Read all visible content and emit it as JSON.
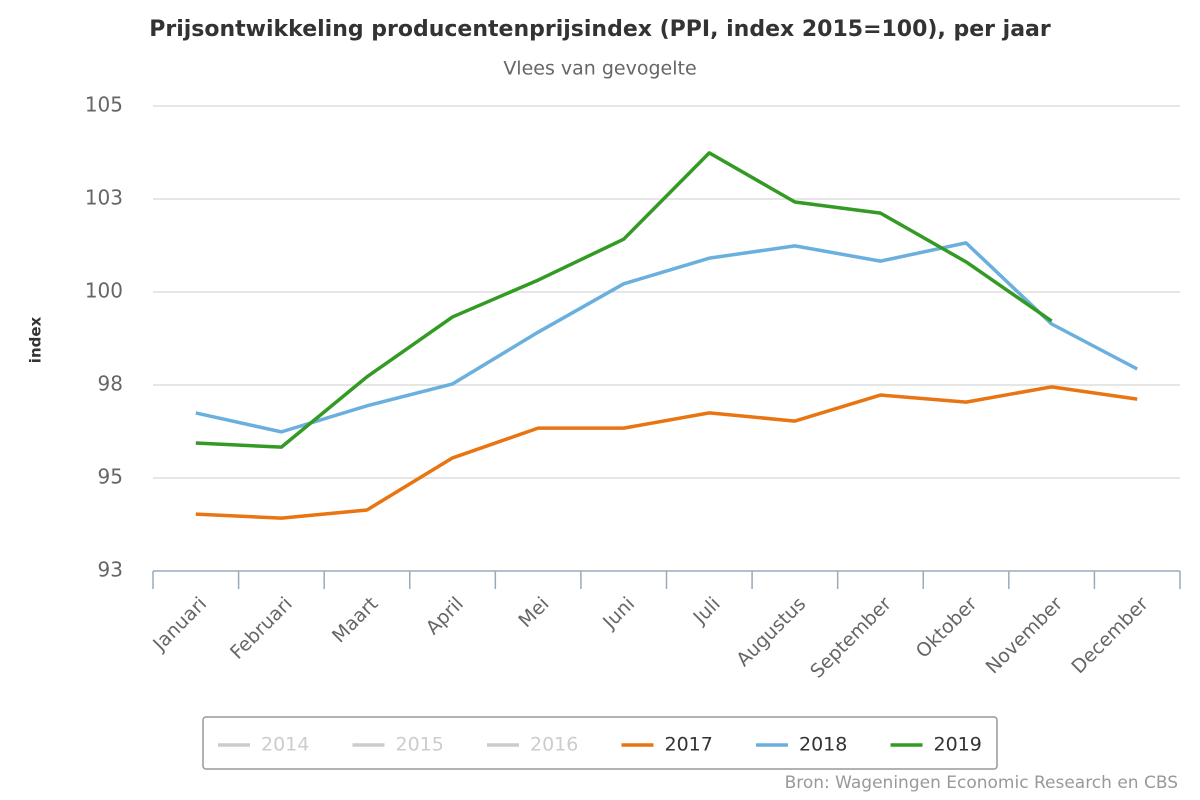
{
  "chart_data": {
    "type": "line",
    "title": "Prijsontwikkeling producentenprijsindex (PPI, index 2015=100), per jaar",
    "subtitle": "Vlees van gevogelte",
    "y_label": "index",
    "source": "Bron: Wageningen Economic Research en CBS",
    "categories": [
      "Januari",
      "Februari",
      "Maart",
      "April",
      "Mei",
      "Juni",
      "Juli",
      "Augustus",
      "September",
      "Oktober",
      "November",
      "December"
    ],
    "series": [
      {
        "name": "2014",
        "color": "#cccccc",
        "hidden": true,
        "values": [
          null,
          null,
          null,
          null,
          null,
          null,
          null,
          null,
          null,
          null,
          null,
          null
        ]
      },
      {
        "name": "2015",
        "color": "#cccccc",
        "hidden": true,
        "values": [
          null,
          null,
          null,
          null,
          null,
          null,
          null,
          null,
          null,
          null,
          null,
          null
        ]
      },
      {
        "name": "2016",
        "color": "#cccccc",
        "hidden": true,
        "values": [
          null,
          null,
          null,
          null,
          null,
          null,
          null,
          null,
          null,
          null,
          null,
          null
        ]
      },
      {
        "name": "2017",
        "color": "#e87511",
        "values": [
          94.03,
          93.92,
          94.14,
          95.54,
          96.34,
          96.34,
          96.75,
          96.53,
          97.23,
          97.04,
          97.45,
          97.12
        ]
      },
      {
        "name": "2018",
        "color": "#6aafde",
        "values": [
          96.75,
          96.24,
          96.94,
          97.53,
          98.92,
          100.22,
          100.91,
          101.24,
          100.83,
          101.32,
          99.14,
          97.93
        ]
      },
      {
        "name": "2019",
        "color": "#339a24",
        "values": [
          95.94,
          95.83,
          97.72,
          99.33,
          100.32,
          101.42,
          103.74,
          102.42,
          102.12,
          100.81,
          99.22,
          null
        ]
      }
    ],
    "ylim": [
      92.5,
      105
    ],
    "yticks": [
      {
        "value": 92.5,
        "label": "93"
      },
      95,
      {
        "value": 97.5,
        "label": "98"
      },
      100,
      {
        "value": 102.5,
        "label": "103"
      },
      105
    ],
    "grid": true
  }
}
